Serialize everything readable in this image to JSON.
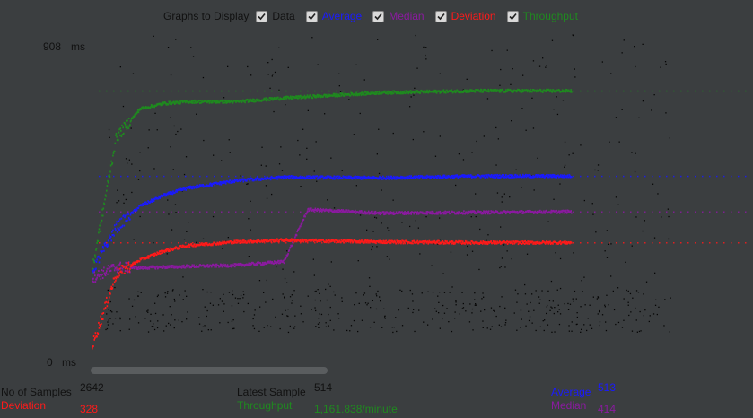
{
  "window": {
    "background_color": "#3b3e40"
  },
  "graphs_to_display": {
    "title": "Graphs to Display",
    "options": [
      {
        "label": "Data",
        "checked": true,
        "color": "#111111"
      },
      {
        "label": "Average",
        "checked": true,
        "color": "#1a1aff"
      },
      {
        "label": "Median",
        "checked": true,
        "color": "#8b1aa0"
      },
      {
        "label": "Deviation",
        "checked": true,
        "color": "#ff1a1a"
      },
      {
        "label": "Throughput",
        "checked": true,
        "color": "#1f8a1f"
      }
    ]
  },
  "axis": {
    "max_value": "908",
    "max_unit": "ms",
    "min_value": "0",
    "min_unit": "ms"
  },
  "chart_data": {
    "type": "scatter",
    "ylim": [
      0,
      908
    ],
    "series": [
      {
        "name": "Average",
        "color": "#1a1aff",
        "x": [
          0,
          5,
          10,
          15,
          20,
          30,
          40,
          60,
          80,
          100
        ],
        "y": [
          250,
          370,
          430,
          460,
          480,
          500,
          510,
          508,
          513,
          513
        ]
      },
      {
        "name": "Median",
        "color": "#8b1aa0",
        "x": [
          0,
          5,
          10,
          15,
          20,
          30,
          40,
          45,
          60,
          80,
          100
        ],
        "y": [
          230,
          260,
          258,
          260,
          262,
          265,
          275,
          420,
          410,
          412,
          414
        ]
      },
      {
        "name": "Deviation",
        "color": "#ff1a1a",
        "x": [
          0,
          5,
          10,
          15,
          20,
          30,
          40,
          60,
          80,
          100
        ],
        "y": [
          40,
          240,
          280,
          305,
          320,
          330,
          335,
          330,
          328,
          328
        ]
      },
      {
        "name": "Throughput",
        "color": "#1f8a1f",
        "x": [
          0,
          5,
          10,
          15,
          20,
          30,
          40,
          60,
          80,
          100
        ],
        "y": [
          250,
          620,
          700,
          715,
          720,
          720,
          730,
          745,
          750,
          750
        ]
      }
    ]
  },
  "footer": {
    "samples_label": "No of Samples",
    "samples_value": "2642",
    "deviation_label": "Deviation",
    "deviation_value": "328",
    "latest_label": "Latest Sample",
    "latest_value": "514",
    "throughput_label": "Throughput",
    "throughput_value": "1,161.838/minute",
    "average_label": "Average",
    "average_value": "513",
    "median_label": "Median",
    "median_value": "414"
  }
}
